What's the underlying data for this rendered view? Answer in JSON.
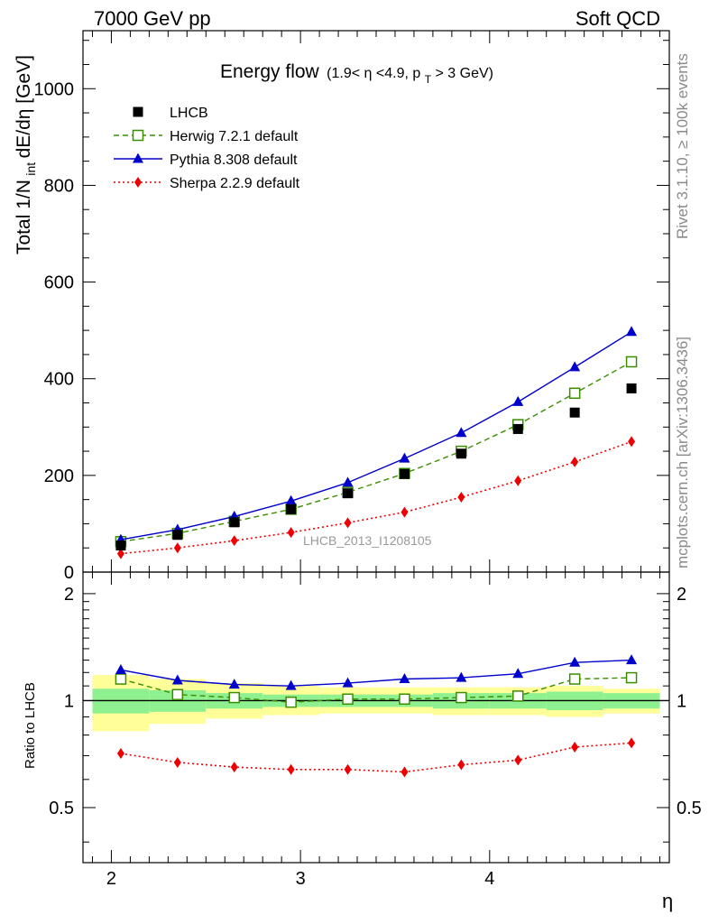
{
  "header": {
    "left": "7000 GeV pp",
    "right": "Soft QCD"
  },
  "side_labels": {
    "rivet": "Rivet 3.1.10, ≥ 100k events",
    "mcplots": "mcplots.cern.ch [arXiv:1306.3436]"
  },
  "chart_data": [
    {
      "type": "line",
      "title_main": "Energy flow",
      "title_cut": "(1.9< η <4.9, p",
      "title_cut_sub": "T",
      "title_cut_tail": " > 3 GeV)",
      "ylabel_main": "Total 1/N",
      "ylabel_sub": "int",
      "ylabel_tail": " dE/dη [GeV]",
      "watermark": "LHCB_2013_I1208105",
      "xlim": [
        1.85,
        4.95
      ],
      "ylim": [
        0,
        1120
      ],
      "yticks": [
        0,
        200,
        400,
        600,
        800,
        1000
      ],
      "ytick_labels": [
        "0",
        "200",
        "400",
        "600",
        "800",
        "1000"
      ],
      "legend_position": "top-left",
      "x": [
        2.05,
        2.35,
        2.65,
        2.95,
        3.25,
        3.55,
        3.85,
        4.15,
        4.45,
        4.75
      ],
      "series": [
        {
          "name": "LHCB",
          "style": "data",
          "color": "#000000",
          "values": [
            55,
            77,
            103,
            130,
            163,
            203,
            245,
            296,
            330,
            380
          ]
        },
        {
          "name": "Herwig 7.2.1 default",
          "style": "open-square-dashed",
          "color": "#3a8e00",
          "values": [
            63,
            80,
            105,
            130,
            165,
            204,
            250,
            305,
            370,
            435
          ]
        },
        {
          "name": "Pythia 8.308 default",
          "style": "triangle-solid",
          "color": "#0000cc",
          "values": [
            67,
            88,
            115,
            147,
            185,
            235,
            288,
            352,
            424,
            497
          ]
        },
        {
          "name": "Sherpa 2.2.9 default",
          "style": "diamond-dotted",
          "color": "#ee0000",
          "values": [
            38,
            50,
            65,
            82,
            102,
            124,
            155,
            189,
            228,
            270
          ]
        }
      ]
    },
    {
      "type": "line",
      "ylabel": "Ratio to LHCB",
      "xlabel": "η",
      "xlim": [
        1.85,
        4.95
      ],
      "ylim": [
        0.35,
        2.3
      ],
      "yticks": [
        0.5,
        1,
        2
      ],
      "ytick_labels": [
        "0.5",
        "1",
        "2"
      ],
      "xticks": [
        2,
        3,
        4
      ],
      "xtick_labels": [
        "2",
        "3",
        "4"
      ],
      "bins": [
        [
          1.9,
          2.2
        ],
        [
          2.2,
          2.5
        ],
        [
          2.5,
          2.8
        ],
        [
          2.8,
          3.1
        ],
        [
          3.1,
          3.4
        ],
        [
          3.4,
          3.7
        ],
        [
          3.7,
          4.0
        ],
        [
          4.0,
          4.3
        ],
        [
          4.3,
          4.6
        ],
        [
          4.6,
          4.9
        ]
      ],
      "band_yellow": [
        [
          0.82,
          1.18
        ],
        [
          0.86,
          1.15
        ],
        [
          0.89,
          1.12
        ],
        [
          0.91,
          1.1
        ],
        [
          0.92,
          1.09
        ],
        [
          0.92,
          1.09
        ],
        [
          0.91,
          1.09
        ],
        [
          0.91,
          1.09
        ],
        [
          0.9,
          1.1
        ],
        [
          0.92,
          1.08
        ]
      ],
      "band_green": [
        [
          0.92,
          1.08
        ],
        [
          0.93,
          1.07
        ],
        [
          0.95,
          1.05
        ],
        [
          0.96,
          1.04
        ],
        [
          0.96,
          1.04
        ],
        [
          0.96,
          1.04
        ],
        [
          0.95,
          1.05
        ],
        [
          0.95,
          1.05
        ],
        [
          0.94,
          1.06
        ],
        [
          0.95,
          1.05
        ]
      ],
      "x": [
        2.05,
        2.35,
        2.65,
        2.95,
        3.25,
        3.55,
        3.85,
        4.15,
        4.45,
        4.75
      ],
      "series": [
        {
          "name": "Herwig 7.2.1 default",
          "style": "open-square-dashed",
          "color": "#3a8e00",
          "values": [
            1.15,
            1.04,
            1.02,
            0.99,
            1.01,
            1.01,
            1.02,
            1.03,
            1.15,
            1.16
          ]
        },
        {
          "name": "Pythia 8.308 default",
          "style": "triangle-solid",
          "color": "#0000cc",
          "values": [
            1.22,
            1.14,
            1.11,
            1.1,
            1.12,
            1.15,
            1.16,
            1.19,
            1.28,
            1.3
          ]
        },
        {
          "name": "Sherpa 2.2.9 default",
          "style": "diamond-dotted",
          "color": "#ee0000",
          "values": [
            0.71,
            0.67,
            0.65,
            0.64,
            0.64,
            0.63,
            0.66,
            0.68,
            0.74,
            0.76
          ]
        }
      ]
    }
  ]
}
